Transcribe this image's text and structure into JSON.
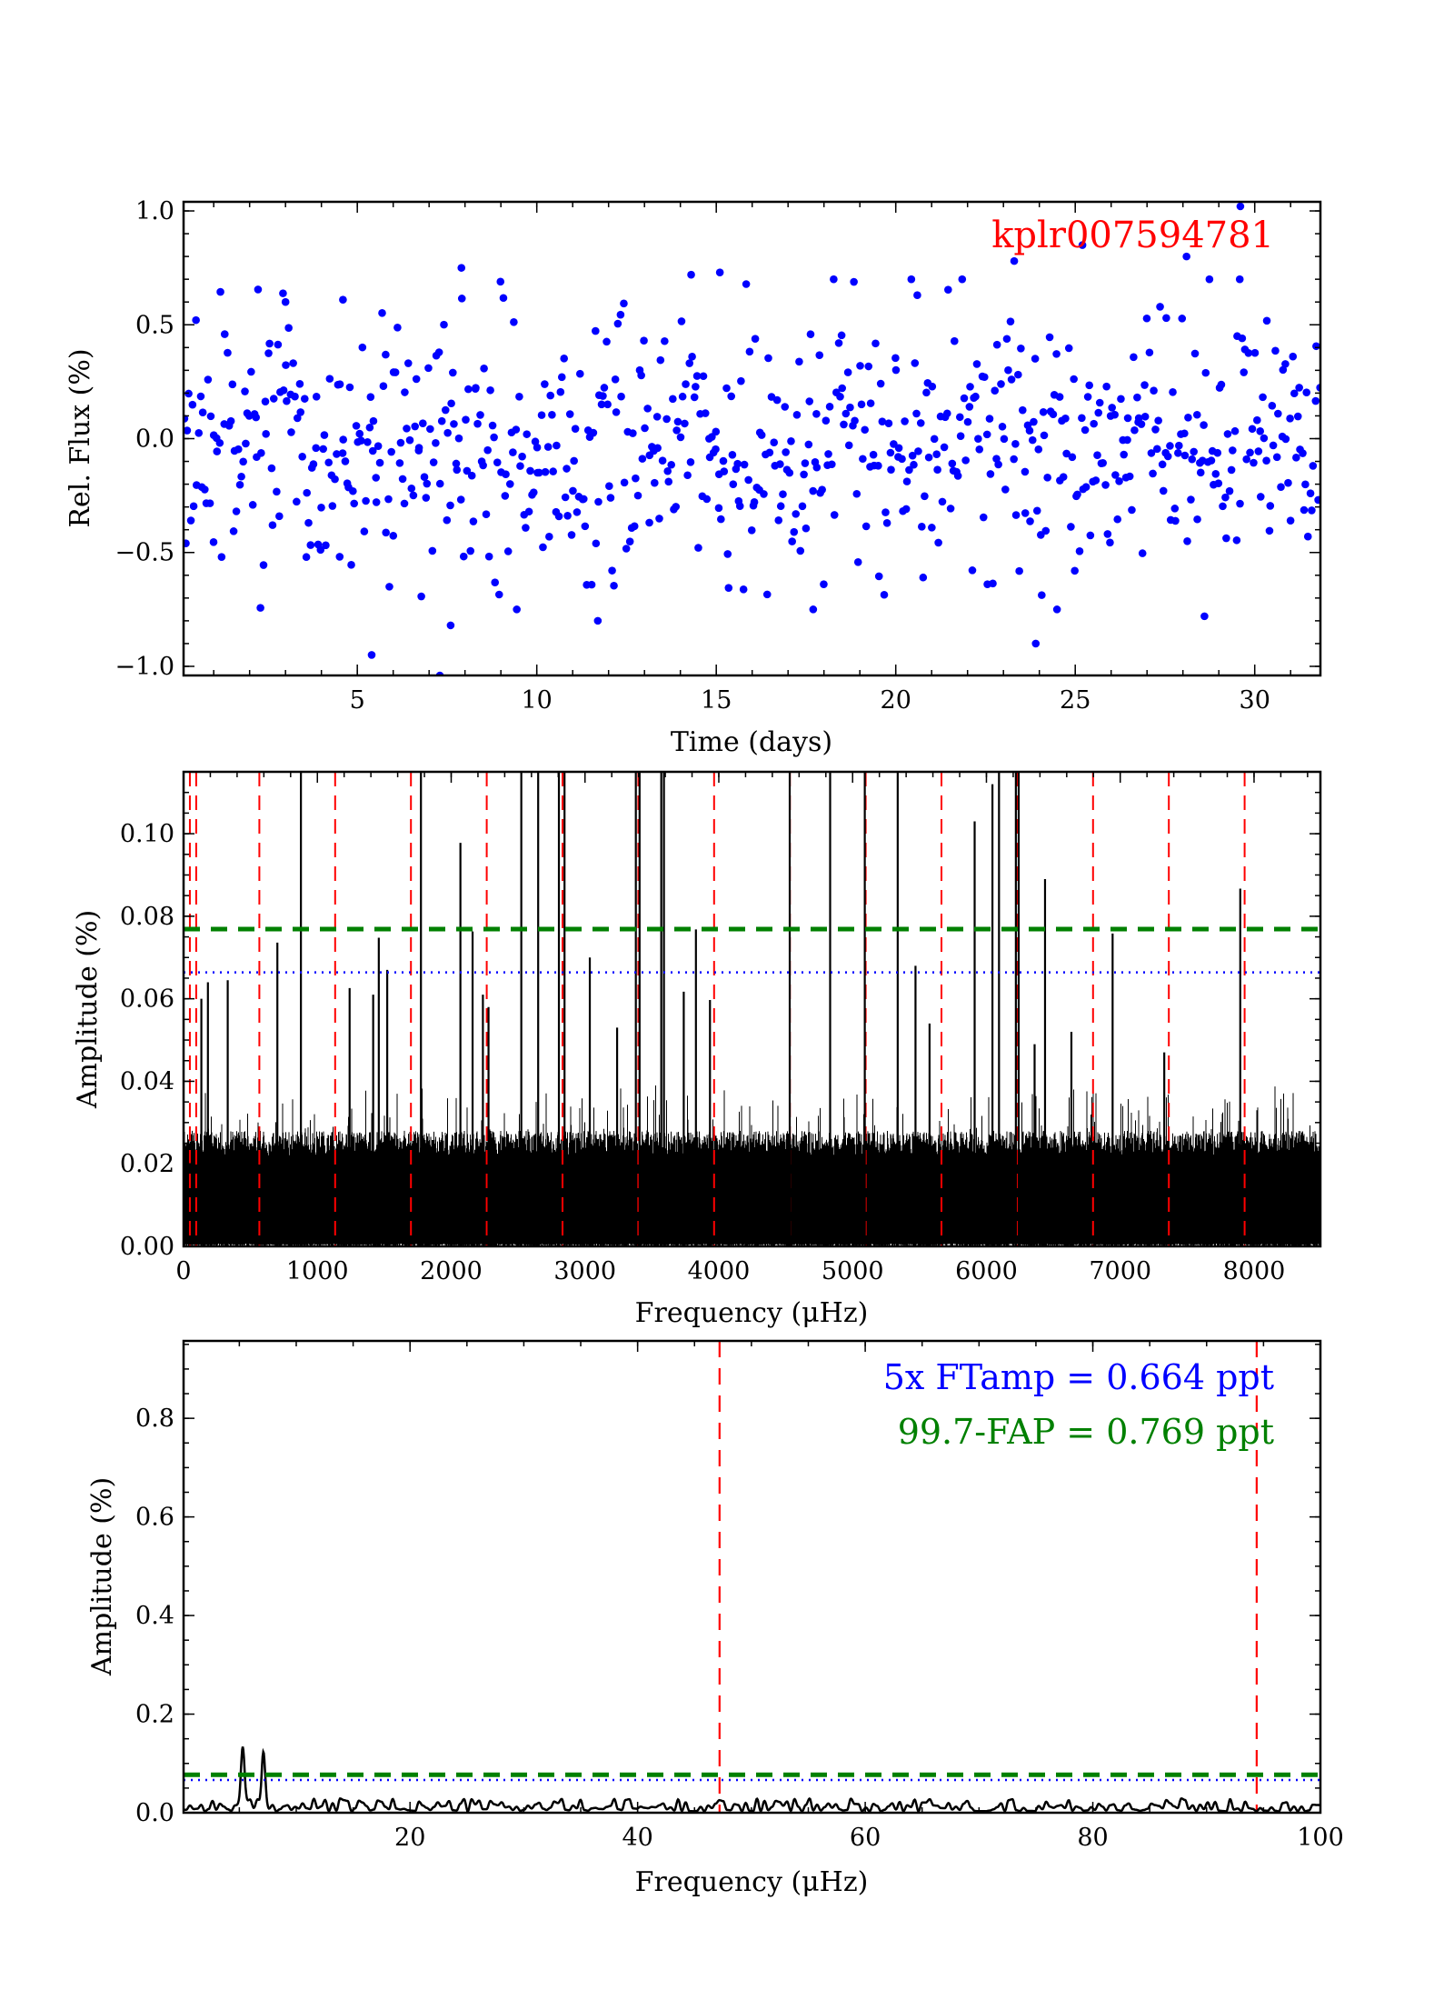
{
  "chart_data": [
    {
      "type": "scatter",
      "title": "kplr007594781",
      "title_color": "#ff0000",
      "xlabel": "Time (days)",
      "ylabel": "Rel. Flux (%)",
      "xlim": [
        0.16,
        31.83
      ],
      "ylim": [
        -1.04,
        1.04
      ],
      "xticks": [
        5,
        10,
        15,
        20,
        25,
        30
      ],
      "xtick_labels": [
        "5",
        "10",
        "15",
        "20",
        "25",
        "30"
      ],
      "yticks": [
        -1.0,
        -0.5,
        0.0,
        0.5,
        1.0
      ],
      "ytick_labels": [
        "−1.0",
        "−0.5",
        "0.0",
        "0.5",
        "1.0"
      ],
      "marker_color": "#0000ff",
      "n_points": 720,
      "flux_sigma": 0.3,
      "notable_points": [
        {
          "x": 7.9,
          "y": 0.75
        },
        {
          "x": 14.3,
          "y": 0.72
        },
        {
          "x": 15.1,
          "y": 0.73
        },
        {
          "x": 23.3,
          "y": 0.78
        },
        {
          "x": 25.2,
          "y": 0.85
        },
        {
          "x": 28.1,
          "y": 0.8
        },
        {
          "x": 29.6,
          "y": 1.02
        },
        {
          "x": 5.4,
          "y": -0.95
        },
        {
          "x": 23.9,
          "y": -0.9
        },
        {
          "x": 7.3,
          "y": -1.04
        },
        {
          "x": 11.7,
          "y": -0.8
        },
        {
          "x": 7.6,
          "y": -0.82
        },
        {
          "x": 28.6,
          "y": -0.78
        },
        {
          "x": 17.7,
          "y": -0.75
        },
        {
          "x": 3.0,
          "y": 0.6
        },
        {
          "x": 4.6,
          "y": 0.61
        },
        {
          "x": 20.6,
          "y": 0.63
        }
      ],
      "grid": false
    },
    {
      "type": "line",
      "xlabel": "Frequency (μHz)",
      "ylabel": "Amplitude (%)",
      "xlim": [
        0,
        8496
      ],
      "ylim": [
        0,
        0.115
      ],
      "xticks": [
        0,
        1000,
        2000,
        3000,
        4000,
        5000,
        6000,
        7000,
        8000
      ],
      "xtick_labels": [
        "0",
        "1000",
        "2000",
        "3000",
        "4000",
        "5000",
        "6000",
        "7000",
        "8000"
      ],
      "yticks": [
        0,
        0.02,
        0.04,
        0.06,
        0.08,
        0.1
      ],
      "ytick_labels": [
        "0.00",
        "0.02",
        "0.04",
        "0.06",
        "0.08",
        "0.10"
      ],
      "noise_floor": 0.027,
      "fap_level": 0.0769,
      "fap_color": "#008000",
      "ftamp_level": 0.0664,
      "ftamp_color": "#0000ff",
      "reference_lines": [
        47.2,
        94.4,
        566.4,
        1132.8,
        1699.2,
        2265.6,
        2832,
        3398.4,
        3964.8,
        4531.2,
        5097.6,
        5664,
        6230.4,
        6796.8,
        7363.2,
        7929.6
      ],
      "reference_color": "#ff0000",
      "peaks": [
        {
          "freq": 133,
          "amp": 0.06
        },
        {
          "freq": 182,
          "amp": 0.064
        },
        {
          "freq": 330,
          "amp": 0.0645
        },
        {
          "freq": 701,
          "amp": 0.0736
        },
        {
          "freq": 877,
          "amp": 0.2
        },
        {
          "freq": 1241,
          "amp": 0.0626
        },
        {
          "freq": 1417,
          "amp": 0.061
        },
        {
          "freq": 1459,
          "amp": 0.0748
        },
        {
          "freq": 1522,
          "amp": 0.067
        },
        {
          "freq": 1774,
          "amp": 0.2
        },
        {
          "freq": 2069,
          "amp": 0.0978
        },
        {
          "freq": 2160,
          "amp": 0.0763
        },
        {
          "freq": 2237,
          "amp": 0.061
        },
        {
          "freq": 2279,
          "amp": 0.058
        },
        {
          "freq": 2524,
          "amp": 0.2
        },
        {
          "freq": 2650,
          "amp": 0.2
        },
        {
          "freq": 2805,
          "amp": 0.2
        },
        {
          "freq": 2847,
          "amp": 0.2
        },
        {
          "freq": 3036,
          "amp": 0.07
        },
        {
          "freq": 3240,
          "amp": 0.053
        },
        {
          "freq": 3380,
          "amp": 0.2
        },
        {
          "freq": 3408,
          "amp": 0.2
        },
        {
          "freq": 3570,
          "amp": 0.2
        },
        {
          "freq": 3590,
          "amp": 0.2
        },
        {
          "freq": 3738,
          "amp": 0.0617
        },
        {
          "freq": 3829,
          "amp": 0.0768
        },
        {
          "freq": 3934,
          "amp": 0.0597
        },
        {
          "freq": 4530,
          "amp": 0.2
        },
        {
          "freq": 4832,
          "amp": 0.2
        },
        {
          "freq": 5091,
          "amp": 0.2
        },
        {
          "freq": 5337,
          "amp": 0.2
        },
        {
          "freq": 5470,
          "amp": 0.068
        },
        {
          "freq": 5575,
          "amp": 0.054
        },
        {
          "freq": 5912,
          "amp": 0.103
        },
        {
          "freq": 6045,
          "amp": 0.112
        },
        {
          "freq": 6094,
          "amp": 0.2
        },
        {
          "freq": 6220,
          "amp": 0.2
        },
        {
          "freq": 6241,
          "amp": 0.2
        },
        {
          "freq": 6360,
          "amp": 0.049
        },
        {
          "freq": 6438,
          "amp": 0.089
        },
        {
          "freq": 6635,
          "amp": 0.052
        },
        {
          "freq": 6943,
          "amp": 0.0758
        },
        {
          "freq": 7329,
          "amp": 0.047
        },
        {
          "freq": 7897,
          "amp": 0.0867
        }
      ],
      "grid": false
    },
    {
      "type": "line",
      "xlabel": "Frequency (μHz)",
      "ylabel": "Amplitude (%)",
      "xlim": [
        0.1,
        100
      ],
      "ylim": [
        0,
        0.957
      ],
      "xticks": [
        20,
        40,
        60,
        80,
        100
      ],
      "xtick_labels": [
        "20",
        "40",
        "60",
        "80",
        "100"
      ],
      "yticks": [
        0,
        0.2,
        0.4,
        0.6,
        0.8
      ],
      "ytick_labels": [
        "0.0",
        "0.2",
        "0.4",
        "0.6",
        "0.8"
      ],
      "fap_level": 0.0769,
      "ftamp_level": 0.0664,
      "reference_lines": [
        47.2,
        94.4
      ],
      "peaks": [
        {
          "freq": 5.3,
          "amp": 0.11
        },
        {
          "freq": 7.1,
          "amp": 0.11
        }
      ],
      "noise_floor": 0.02,
      "annotations": [
        {
          "text": "5x FTamp = 0.664 ppt",
          "color": "#0000ff"
        },
        {
          "text": "99.7-FAP = 0.769 ppt",
          "color": "#008000"
        }
      ],
      "grid": false
    }
  ]
}
